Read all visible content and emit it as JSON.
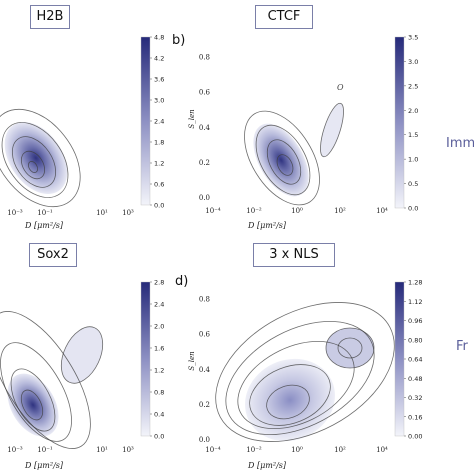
{
  "panels": [
    {
      "title": "H2B",
      "letter": ""
    },
    {
      "title": "CTCF",
      "letter": "b)"
    },
    {
      "title": "Sox2",
      "letter": ""
    },
    {
      "title": "3 x NLS",
      "letter": "d)"
    }
  ],
  "side_labels": {
    "top": "Imm",
    "bottom": "Fr"
  },
  "annotations": {
    "ctcf_point": "O"
  },
  "colors": {
    "density_low": "#eef0f8",
    "density_high": "#2a2f7e",
    "contour": "#3c3c3c",
    "frame": "#7a7fa8",
    "side_text": "#5a5e9a"
  },
  "chart_data": [
    {
      "type": "heatmap",
      "title": "H2B",
      "xlabel": "D [μm²/s]",
      "ylabel": "",
      "x_ticks": [
        "10⁻³",
        "10⁻¹",
        "10¹",
        "10³"
      ],
      "y_ticks": [],
      "colorbar_ticks": [
        "4.8",
        "4.2",
        "3.6",
        "3.0",
        "2.4",
        "1.8",
        "1.2",
        "0.6",
        "0.0"
      ],
      "colorbar_range": [
        0,
        4.8
      ],
      "peak": {
        "x_log10D": -1.3,
        "y": 0.2,
        "density": 4.8
      }
    },
    {
      "type": "heatmap",
      "title": "CTCF",
      "xlabel": "D [μm²/s]",
      "ylabel": "S_len",
      "x_ticks": [
        "10⁻⁴",
        "10⁻²",
        "10⁰",
        "10²",
        "10⁴"
      ],
      "y_ticks": [
        "0.8",
        "0.6",
        "0.4",
        "0.2",
        "0.0"
      ],
      "ylim": [
        0,
        0.9
      ],
      "colorbar_ticks": [
        "3.5",
        "3.0",
        "2.5",
        "2.0",
        "1.5",
        "1.0",
        "0.5",
        "0.0"
      ],
      "colorbar_range": [
        0,
        3.5
      ],
      "peak": {
        "x_log10D": -0.8,
        "y": 0.15,
        "density": 3.5
      }
    },
    {
      "type": "heatmap",
      "title": "Sox2",
      "xlabel": "D [μm²/s]",
      "ylabel": "",
      "x_ticks": [
        "10⁻³",
        "10⁻¹",
        "10¹",
        "10³"
      ],
      "y_ticks": [],
      "colorbar_ticks": [
        "2.8",
        "2.4",
        "2.0",
        "1.6",
        "1.2",
        "0.8",
        "0.4",
        "0.0"
      ],
      "colorbar_range": [
        0,
        2.8
      ],
      "peak": {
        "x_log10D": -1.4,
        "y": 0.15,
        "density": 2.8
      }
    },
    {
      "type": "heatmap",
      "title": "3 x NLS",
      "xlabel": "D [μm²/s]",
      "ylabel": "S_len",
      "x_ticks": [
        "10⁻⁴",
        "10⁻²",
        "10⁰",
        "10²",
        "10⁴"
      ],
      "y_ticks": [
        "0.8",
        "0.6",
        "0.4",
        "0.2",
        "0.0"
      ],
      "ylim": [
        0,
        0.9
      ],
      "colorbar_ticks": [
        "1.28",
        "1.12",
        "0.96",
        "0.80",
        "0.64",
        "0.48",
        "0.32",
        "0.16",
        "0.00"
      ],
      "colorbar_range": [
        0,
        1.28
      ],
      "peak": {
        "x_log10D": -1.0,
        "y": 0.2,
        "density": 1.28
      }
    }
  ]
}
